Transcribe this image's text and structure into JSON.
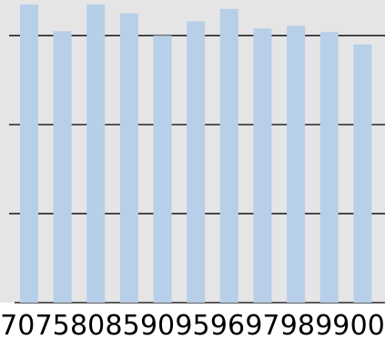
{
  "chart_data": {
    "type": "bar",
    "categories": [
      "70",
      "75",
      "80",
      "85",
      "90",
      "95",
      "96",
      "97",
      "98",
      "99",
      "00"
    ],
    "values": [
      335,
      305,
      335,
      325,
      300,
      316,
      330,
      308,
      311,
      304,
      290
    ],
    "ylim": [
      0,
      340
    ],
    "grid": true,
    "legend": "none",
    "colors": {
      "background": "#e5e5e5",
      "bar": "#b7cfe9",
      "gridline": "#000000",
      "text": "#000000"
    }
  }
}
